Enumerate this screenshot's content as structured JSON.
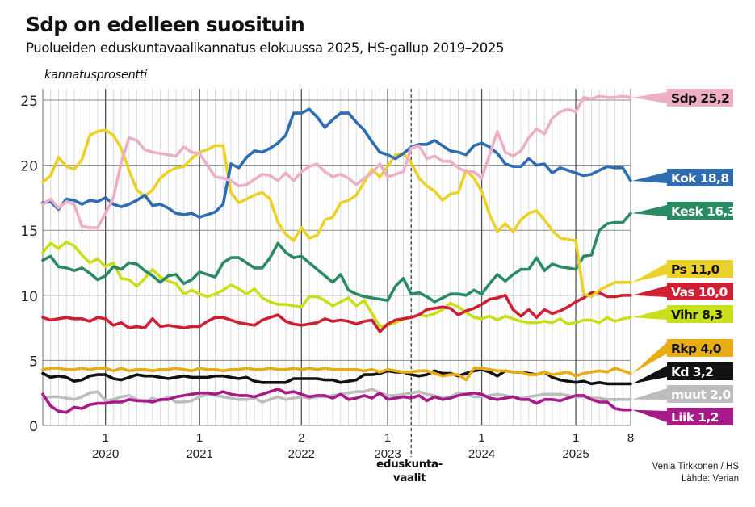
{
  "header": {
    "title": "Sdp on edelleen suosituin",
    "subtitle": "Puolueiden eduskuntavaalikannatus elokuussa 2025, HS-gallup 2019–2025",
    "y_axis_label": "kannatusprosentti"
  },
  "footer": {
    "credit_line1": "Venla Tirkkonen / HS",
    "credit_line2": "Lähde: Verian"
  },
  "chart_data": {
    "type": "line",
    "title": "Sdp on edelleen suosituin",
    "subtitle": "Puolueiden eduskuntavaalikannatus elokuussa 2025, HS-gallup 2019–2025",
    "xlabel": "",
    "ylabel": "kannatusprosentti",
    "ylim": [
      0,
      26
    ],
    "yticks": [
      0,
      5,
      10,
      15,
      20,
      25
    ],
    "grid": true,
    "x_start": "2019-05",
    "x_end": "2025-08",
    "x_ticks": [
      {
        "month": "2020-01",
        "label_month": "1",
        "label_year": "2020"
      },
      {
        "month": "2021-01",
        "label_month": "1",
        "label_year": "2021"
      },
      {
        "month": "2022-02",
        "label_month": "2",
        "label_year": "2022"
      },
      {
        "month": "2023-01",
        "label_month": "1",
        "label_year": "2023"
      },
      {
        "month": "2024-01",
        "label_month": "1",
        "label_year": "2024"
      },
      {
        "month": "2025-01",
        "label_month": "1",
        "label_year": "2025"
      },
      {
        "month": "2025-08",
        "label_month": "8",
        "label_year": ""
      }
    ],
    "annotations": [
      {
        "month": "2023-04",
        "text_line1": "eduskunta-",
        "text_line2": "vaalit",
        "style": "dashed-vertical"
      }
    ],
    "legend_placement": "right",
    "series": [
      {
        "name": "Sdp",
        "label": "Sdp 25,2",
        "last": "25,2",
        "color": "#eeaec6",
        "text_color": "#111111",
        "values": [
          17.0,
          17.4,
          16.7,
          17.2,
          17.0,
          15.3,
          15.2,
          15.2,
          16.3,
          17.5,
          20.2,
          22.1,
          21.9,
          21.2,
          21.0,
          20.9,
          20.8,
          20.7,
          21.4,
          21.0,
          20.9,
          20.0,
          19.1,
          19.0,
          18.8,
          18.4,
          18.5,
          18.9,
          19.3,
          19.2,
          18.8,
          19.4,
          18.8,
          19.5,
          19.9,
          20.1,
          19.5,
          19.1,
          19.3,
          19.0,
          18.5,
          19.0,
          19.4,
          20.1,
          19.1,
          19.3,
          19.5,
          21.3,
          21.5,
          20.5,
          20.7,
          20.3,
          20.3,
          19.8,
          19.5,
          19.5,
          19.0,
          20.8,
          22.6,
          21.0,
          20.7,
          21.1,
          22.1,
          22.8,
          22.4,
          23.6,
          24.1,
          24.3,
          24.1,
          25.2,
          25.1,
          25.3,
          25.2,
          25.2,
          25.3,
          25.2
        ]
      },
      {
        "name": "Kok",
        "label": "Kok 18,8",
        "last": "18,8",
        "color": "#2f6db3",
        "text_color": "#ffffff",
        "values": [
          17.1,
          17.2,
          16.6,
          17.4,
          17.3,
          17.0,
          17.3,
          17.2,
          17.5,
          17.0,
          16.8,
          17.0,
          17.3,
          17.7,
          16.9,
          17.0,
          16.7,
          16.3,
          16.2,
          16.3,
          16.0,
          16.2,
          16.4,
          17.0,
          20.1,
          19.8,
          20.6,
          21.1,
          21.0,
          21.3,
          21.7,
          22.3,
          24.0,
          24.0,
          24.3,
          23.7,
          22.9,
          23.5,
          24.0,
          24.0,
          23.3,
          22.7,
          21.8,
          21.0,
          20.8,
          20.5,
          20.9,
          21.4,
          21.6,
          21.6,
          21.9,
          21.5,
          21.1,
          21.0,
          20.8,
          21.5,
          21.7,
          21.4,
          20.9,
          20.1,
          19.9,
          19.9,
          20.5,
          20.0,
          20.1,
          19.4,
          19.8,
          19.6,
          19.4,
          19.2,
          19.3,
          19.6,
          19.9,
          19.8,
          19.8,
          18.8
        ]
      },
      {
        "name": "Kesk",
        "label": "Kesk 16,3",
        "last": "16,3",
        "color": "#2a8a61",
        "text_color": "#ffffff",
        "values": [
          12.7,
          13.0,
          12.2,
          12.1,
          11.9,
          12.1,
          11.7,
          11.2,
          11.5,
          12.2,
          12.0,
          12.5,
          12.4,
          11.9,
          11.5,
          11.0,
          11.5,
          11.6,
          10.9,
          11.2,
          11.8,
          11.6,
          11.4,
          12.5,
          12.9,
          12.9,
          12.5,
          12.1,
          12.1,
          12.9,
          14.0,
          13.3,
          12.9,
          13.0,
          12.5,
          12.0,
          11.5,
          11.0,
          11.6,
          10.4,
          10.1,
          9.9,
          9.8,
          9.7,
          9.6,
          10.7,
          11.3,
          10.1,
          10.2,
          9.9,
          9.5,
          9.8,
          10.1,
          10.1,
          10.0,
          10.4,
          10.1,
          10.9,
          11.6,
          11.1,
          11.6,
          12.0,
          12.0,
          12.9,
          11.9,
          12.4,
          12.2,
          12.1,
          12.0,
          13.0,
          13.1,
          15.0,
          15.5,
          15.6,
          15.6,
          16.3
        ]
      },
      {
        "name": "Ps",
        "label": "Ps 11,0",
        "last": "11,0",
        "color": "#ebd22a",
        "text_color": "#111111",
        "values": [
          18.7,
          19.2,
          20.6,
          19.9,
          19.7,
          20.4,
          22.3,
          22.6,
          22.7,
          22.3,
          21.3,
          19.6,
          18.1,
          17.6,
          18.1,
          19.0,
          19.5,
          19.8,
          19.9,
          20.5,
          21.0,
          21.2,
          21.5,
          21.5,
          17.9,
          17.1,
          17.4,
          17.7,
          17.9,
          17.4,
          15.6,
          14.7,
          14.2,
          15.2,
          14.4,
          14.6,
          15.8,
          16.0,
          17.1,
          17.3,
          17.7,
          18.7,
          19.7,
          19.1,
          19.9,
          20.8,
          20.9,
          20.2,
          19.0,
          18.4,
          18.0,
          17.3,
          17.8,
          17.9,
          19.6,
          19.0,
          18.0,
          16.2,
          14.9,
          15.5,
          14.9,
          15.8,
          16.3,
          16.5,
          15.8,
          15.0,
          14.4,
          14.3,
          14.2,
          10.1,
          9.9,
          10.4,
          10.7,
          11.0,
          11.0,
          11.0
        ]
      },
      {
        "name": "Vas",
        "label": "Vas 10,0",
        "last": "10,0",
        "color": "#cf1f33",
        "text_color": "#ffffff",
        "values": [
          8.3,
          8.1,
          8.2,
          8.3,
          8.2,
          8.2,
          8.0,
          8.3,
          8.2,
          7.7,
          7.9,
          7.5,
          7.6,
          7.5,
          8.2,
          7.6,
          7.7,
          7.6,
          7.5,
          7.6,
          7.6,
          8.0,
          8.3,
          8.3,
          8.1,
          7.9,
          7.8,
          7.7,
          8.1,
          8.3,
          8.5,
          8.0,
          7.8,
          7.7,
          7.8,
          7.9,
          8.2,
          8.0,
          8.1,
          8.0,
          7.8,
          8.0,
          8.1,
          7.2,
          7.8,
          8.1,
          8.2,
          8.3,
          8.5,
          8.9,
          9.0,
          9.1,
          9.0,
          8.5,
          8.8,
          9.0,
          9.3,
          9.7,
          9.8,
          10.0,
          8.9,
          8.4,
          8.9,
          8.3,
          8.9,
          8.6,
          8.8,
          9.1,
          9.5,
          9.8,
          10.2,
          10.2,
          9.9,
          9.9,
          10.0,
          10.0
        ]
      },
      {
        "name": "Vihr",
        "label": "Vihr 8,3",
        "last": "8,3",
        "color": "#c9df1b",
        "text_color": "#111111",
        "values": [
          13.3,
          14.0,
          13.6,
          14.1,
          13.8,
          13.1,
          12.5,
          12.8,
          12.2,
          12.5,
          11.3,
          11.2,
          10.7,
          11.3,
          12.0,
          11.4,
          11.1,
          10.9,
          10.1,
          10.4,
          10.1,
          9.9,
          10.1,
          10.4,
          10.8,
          10.5,
          10.1,
          10.5,
          9.8,
          9.5,
          9.3,
          9.3,
          9.2,
          9.1,
          9.9,
          9.9,
          9.6,
          9.2,
          9.5,
          9.8,
          9.2,
          9.6,
          8.6,
          7.6,
          7.7,
          7.9,
          8.2,
          8.3,
          8.5,
          8.4,
          8.6,
          8.9,
          9.4,
          9.1,
          8.7,
          8.3,
          8.2,
          8.4,
          8.1,
          8.4,
          8.2,
          8.0,
          7.9,
          7.9,
          8.0,
          7.9,
          8.2,
          7.8,
          7.9,
          8.1,
          8.1,
          7.9,
          8.3,
          8.0,
          8.2,
          8.3
        ]
      },
      {
        "name": "Rkp",
        "label": "Rkp 4,0",
        "last": "4,0",
        "color": "#e8ac14",
        "text_color": "#111111",
        "values": [
          4.3,
          4.4,
          4.4,
          4.3,
          4.3,
          4.4,
          4.3,
          4.4,
          4.4,
          4.2,
          4.4,
          4.2,
          4.3,
          4.3,
          4.2,
          4.3,
          4.3,
          4.4,
          4.3,
          4.2,
          4.4,
          4.3,
          4.3,
          4.2,
          4.3,
          4.3,
          4.4,
          4.3,
          4.3,
          4.4,
          4.3,
          4.3,
          4.4,
          4.3,
          4.4,
          4.3,
          4.4,
          4.3,
          4.3,
          4.3,
          4.3,
          4.2,
          4.3,
          4.1,
          4.3,
          4.2,
          4.1,
          4.1,
          4.2,
          4.2,
          4.0,
          3.8,
          3.9,
          3.9,
          3.5,
          4.4,
          4.4,
          4.3,
          4.2,
          4.2,
          4.1,
          4.1,
          3.9,
          3.9,
          4.1,
          3.9,
          4.0,
          4.1,
          3.8,
          4.0,
          4.1,
          4.2,
          4.1,
          4.4,
          4.2,
          4.0
        ]
      },
      {
        "name": "Kd",
        "label": "Kd 3,2",
        "last": "3,2",
        "color": "#111111",
        "text_color": "#ffffff",
        "values": [
          4.0,
          3.7,
          3.8,
          3.7,
          3.4,
          3.5,
          3.8,
          3.9,
          3.9,
          3.6,
          3.5,
          3.7,
          3.9,
          3.8,
          3.8,
          3.7,
          3.6,
          3.7,
          3.8,
          3.7,
          3.7,
          3.7,
          3.8,
          3.8,
          3.7,
          3.6,
          3.7,
          3.4,
          3.3,
          3.3,
          3.3,
          3.3,
          3.6,
          3.6,
          3.6,
          3.6,
          3.5,
          3.5,
          3.3,
          3.4,
          3.5,
          3.9,
          3.9,
          4.0,
          4.2,
          4.1,
          4.1,
          3.9,
          3.8,
          3.9,
          4.2,
          4.0,
          4.0,
          3.8,
          4.0,
          4.2,
          4.3,
          4.1,
          3.8,
          4.2,
          4.1,
          4.1,
          4.0,
          3.9,
          4.1,
          3.7,
          3.5,
          3.4,
          3.3,
          3.4,
          3.2,
          3.3,
          3.2,
          3.2,
          3.2,
          3.2
        ]
      },
      {
        "name": "muut",
        "label": "muut 2,0",
        "last": "2,0",
        "color": "#bdbdbd",
        "text_color": "#ffffff",
        "values": [
          2.1,
          2.2,
          2.2,
          2.1,
          2.0,
          2.2,
          2.5,
          2.6,
          1.9,
          2.0,
          2.2,
          2.3,
          2.0,
          1.8,
          2.1,
          1.9,
          2.2,
          1.8,
          1.8,
          1.9,
          2.2,
          2.4,
          2.3,
          2.2,
          2.1,
          2.0,
          2.0,
          2.1,
          1.8,
          2.0,
          2.2,
          2.0,
          2.1,
          2.2,
          2.1,
          2.2,
          2.2,
          2.3,
          2.4,
          2.5,
          2.6,
          2.6,
          2.8,
          2.5,
          2.3,
          2.3,
          2.4,
          2.5,
          2.6,
          2.4,
          2.3,
          2.1,
          2.2,
          2.5,
          2.4,
          2.2,
          2.2,
          2.3,
          2.4,
          2.3,
          2.2,
          2.1,
          2.2,
          2.3,
          2.4,
          2.4,
          2.4,
          2.3,
          2.2,
          2.2,
          2.1,
          2.1,
          2.0,
          2.0,
          2.0,
          2.0
        ]
      },
      {
        "name": "Liik",
        "label": "Liik 1,2",
        "last": "1,2",
        "color": "#a8198a",
        "text_color": "#ffffff",
        "values": [
          2.4,
          1.5,
          1.1,
          1.0,
          1.4,
          1.3,
          1.6,
          1.7,
          1.7,
          1.8,
          1.8,
          2.0,
          1.9,
          1.9,
          1.8,
          2.0,
          2.0,
          2.2,
          2.3,
          2.4,
          2.5,
          2.5,
          2.4,
          2.6,
          2.4,
          2.3,
          2.3,
          2.2,
          2.4,
          2.6,
          2.8,
          2.5,
          2.6,
          2.4,
          2.2,
          2.3,
          2.3,
          2.1,
          2.4,
          2.0,
          2.1,
          2.3,
          2.1,
          2.5,
          2.0,
          2.1,
          2.2,
          2.1,
          2.3,
          1.9,
          2.2,
          2.0,
          2.1,
          2.3,
          2.4,
          2.5,
          2.4,
          2.1,
          2.0,
          2.1,
          2.2,
          2.0,
          2.0,
          1.7,
          2.0,
          2.0,
          1.9,
          2.1,
          2.3,
          2.3,
          2.0,
          1.8,
          1.8,
          1.3,
          1.2,
          1.2
        ]
      }
    ]
  }
}
